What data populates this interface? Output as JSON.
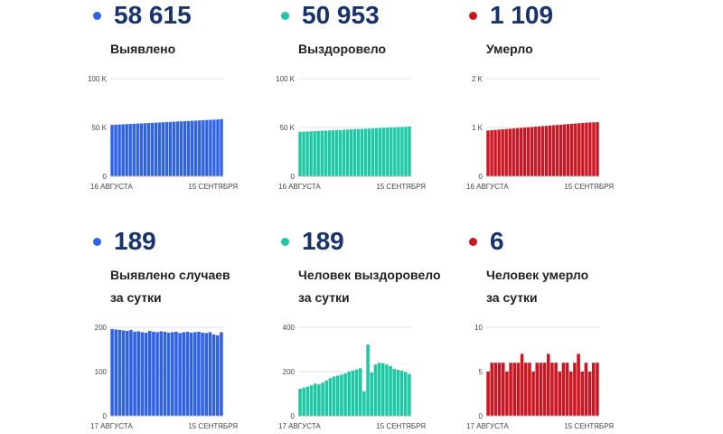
{
  "panels": [
    {
      "value": "58 615",
      "label_lines": [
        "Выявлено"
      ],
      "color": "#2f62e6",
      "chart_data": {
        "type": "bar",
        "yticks": [
          "0",
          "50 K",
          "100 K"
        ],
        "ylim": [
          0,
          100000
        ],
        "x_start": "16 АВГУСТА",
        "x_end": "15 СЕНТЯБРЯ",
        "values": [
          52680,
          52870,
          53060,
          53250,
          53440,
          53630,
          53820,
          54010,
          54200,
          54390,
          54580,
          54770,
          54960,
          55150,
          55340,
          55530,
          55720,
          55910,
          56100,
          56290,
          56480,
          56670,
          56860,
          57050,
          57240,
          57430,
          57620,
          57810,
          58000,
          58190,
          58615
        ]
      }
    },
    {
      "value": "50 953",
      "label_lines": [
        "Выздоровело"
      ],
      "color": "#1ec8a5",
      "chart_data": {
        "type": "bar",
        "yticks": [
          "0",
          "50 K",
          "100 K"
        ],
        "ylim": [
          0,
          100000
        ],
        "x_start": "16 АВГУСТА",
        "x_end": "15 СЕНТЯБРЯ",
        "values": [
          45500,
          45680,
          45860,
          46040,
          46220,
          46400,
          46580,
          46760,
          46940,
          47120,
          47300,
          47480,
          47660,
          47840,
          48020,
          48200,
          48380,
          48560,
          48740,
          48920,
          49100,
          49280,
          49460,
          49640,
          49820,
          50000,
          50180,
          50360,
          50540,
          50720,
          50953
        ]
      }
    },
    {
      "value": "1 109",
      "label_lines": [
        "Умерло"
      ],
      "color": "#cc1622",
      "chart_data": {
        "type": "bar",
        "yticks": [
          "0",
          "1 K",
          "2 K"
        ],
        "ylim": [
          0,
          2000
        ],
        "x_start": "16 АВГУСТА",
        "x_end": "15 СЕНТЯБРЯ",
        "values": [
          938,
          944,
          950,
          956,
          962,
          968,
          974,
          980,
          986,
          992,
          998,
          1004,
          1010,
          1016,
          1022,
          1028,
          1034,
          1040,
          1046,
          1052,
          1058,
          1064,
          1070,
          1076,
          1082,
          1088,
          1094,
          1100,
          1103,
          1106,
          1109
        ]
      }
    },
    {
      "value": "189",
      "label_lines": [
        "Выявлено случаев",
        "за сутки"
      ],
      "color": "#2f62e6",
      "chart_data": {
        "type": "bar",
        "yticks": [
          "0",
          "100",
          "200"
        ],
        "ylim": [
          0,
          200
        ],
        "x_start": "17 АВГУСТА",
        "x_end": "15 СЕНТЯБРЯ",
        "values": [
          196,
          195,
          194,
          193,
          192,
          194,
          190,
          191,
          189,
          188,
          192,
          190,
          189,
          191,
          190,
          188,
          189,
          190,
          187,
          189,
          190,
          188,
          189,
          190,
          188,
          187,
          189,
          184,
          182,
          189
        ]
      }
    },
    {
      "value": "189",
      "label_lines": [
        "Человек выздоровело",
        "за сутки"
      ],
      "color": "#1ec8a5",
      "chart_data": {
        "type": "bar",
        "yticks": [
          "0",
          "200",
          "400"
        ],
        "ylim": [
          0,
          400
        ],
        "x_start": "17 АВГУСТА",
        "x_end": "15 СЕНТЯБРЯ",
        "values": [
          123,
          128,
          132,
          138,
          146,
          142,
          150,
          160,
          170,
          178,
          182,
          186,
          192,
          200,
          205,
          210,
          215,
          110,
          322,
          196,
          232,
          240,
          238,
          232,
          225,
          212,
          208,
          204,
          198,
          189
        ]
      }
    },
    {
      "value": "6",
      "label_lines": [
        "Человек умерло",
        "за сутки"
      ],
      "color": "#cc1622",
      "chart_data": {
        "type": "bar",
        "yticks": [
          "0",
          "5",
          "10"
        ],
        "ylim": [
          0,
          10
        ],
        "x_start": "17 АВГУСТА",
        "x_end": "15 СЕНТЯБРЯ",
        "values": [
          5,
          6,
          6,
          6,
          6,
          5,
          6,
          6,
          6,
          7,
          6,
          6,
          5,
          6,
          6,
          6,
          7,
          6,
          6,
          5,
          6,
          6,
          5,
          6,
          7,
          5,
          6,
          5,
          6,
          6
        ]
      }
    }
  ]
}
